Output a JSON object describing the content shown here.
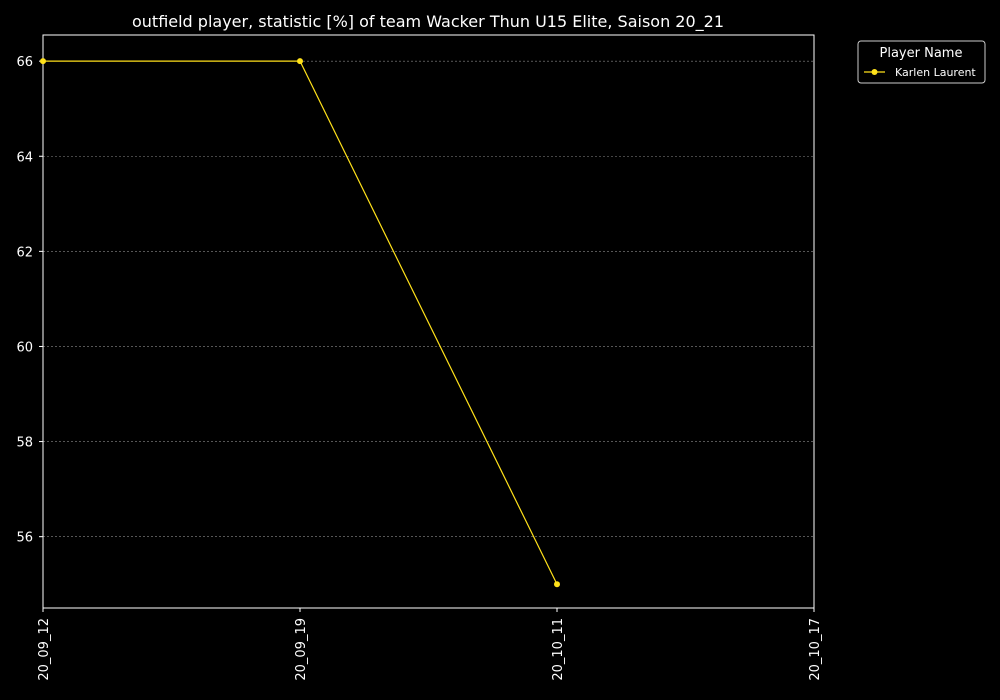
{
  "chart_data": {
    "type": "line",
    "title": "outfield player, statistic [%] of team Wacker Thun U15 Elite, Saison 20_21",
    "xlabel": "",
    "ylabel": "",
    "x_ticks": [
      "20_09_12",
      "20_09_19",
      "20_10_11",
      "20_10_17"
    ],
    "y_ticks": [
      56,
      58,
      60,
      62,
      64,
      66
    ],
    "ylim": [
      54.5,
      66.55
    ],
    "grid": true,
    "legend": {
      "title": "Player Name",
      "placement": "outside-top-right"
    },
    "series": [
      {
        "name": "Karlen Laurent",
        "color": "#ffe11a",
        "points": [
          {
            "x": "20_09_12",
            "y": 66
          },
          {
            "x": "20_09_19",
            "y": 66
          },
          {
            "x": "20_10_11",
            "y": 55
          }
        ]
      }
    ]
  },
  "colors": {
    "background": "#000000",
    "axis": "#ffffff",
    "grid": "#8a8a8a",
    "text": "#ffffff"
  }
}
